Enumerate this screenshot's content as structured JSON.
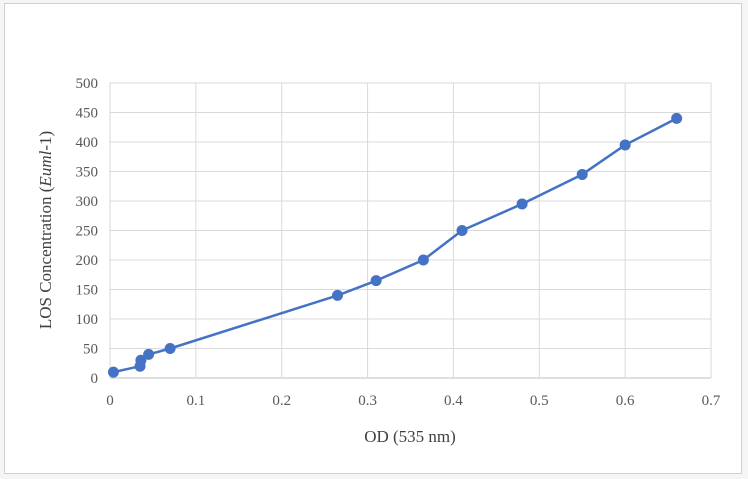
{
  "chart_data": {
    "type": "line",
    "title": "",
    "xlabel": "OD (535 nm)",
    "ylabel_parts": {
      "prefix": "LOS Concentration (",
      "italic": "Euml",
      "suffix": "-1)"
    },
    "xlim": [
      0,
      0.7
    ],
    "ylim": [
      0,
      500
    ],
    "x_ticks": [
      "0",
      "0.1",
      "0.2",
      "0.3",
      "0.4",
      "0.5",
      "0.6",
      "0.7"
    ],
    "y_ticks": [
      "0",
      "50",
      "100",
      "150",
      "200",
      "250",
      "300",
      "350",
      "400",
      "450",
      "500"
    ],
    "grid": true,
    "legend": "none",
    "series": [
      {
        "color": "#4472c4",
        "points": [
          {
            "x": 0.004,
            "y": 10
          },
          {
            "x": 0.035,
            "y": 20
          },
          {
            "x": 0.036,
            "y": 30
          },
          {
            "x": 0.045,
            "y": 40
          },
          {
            "x": 0.07,
            "y": 50
          },
          {
            "x": 0.265,
            "y": 140
          },
          {
            "x": 0.31,
            "y": 165
          },
          {
            "x": 0.365,
            "y": 200
          },
          {
            "x": 0.41,
            "y": 250
          },
          {
            "x": 0.48,
            "y": 295
          },
          {
            "x": 0.55,
            "y": 345
          },
          {
            "x": 0.6,
            "y": 395
          },
          {
            "x": 0.66,
            "y": 440
          }
        ]
      }
    ]
  }
}
